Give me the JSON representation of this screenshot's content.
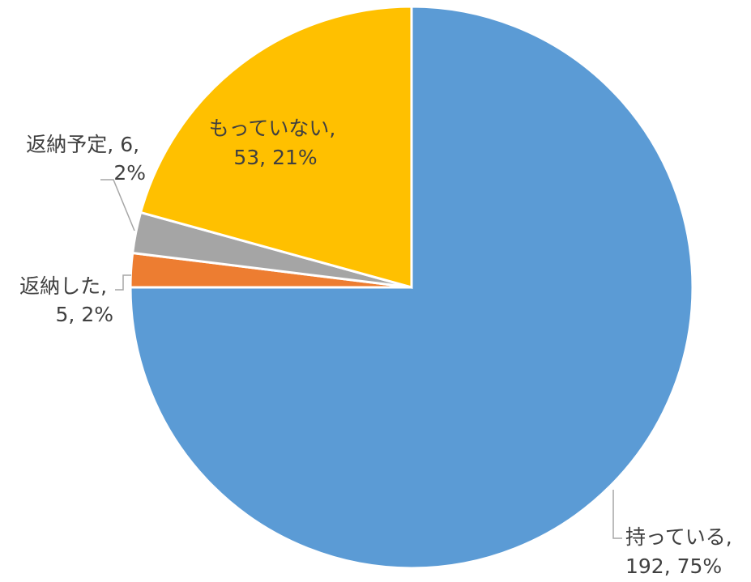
{
  "chart_data": {
    "type": "pie",
    "categories": [
      "持っている",
      "返納した",
      "返納予定",
      "もっていない"
    ],
    "values": [
      192,
      5,
      6,
      53
    ],
    "percent_labels": [
      "75%",
      "2%",
      "2%",
      "21%"
    ],
    "label_separator": ", ",
    "colors": [
      "#5b9bd5",
      "#ed7d31",
      "#a5a5a5",
      "#ffc000"
    ]
  }
}
